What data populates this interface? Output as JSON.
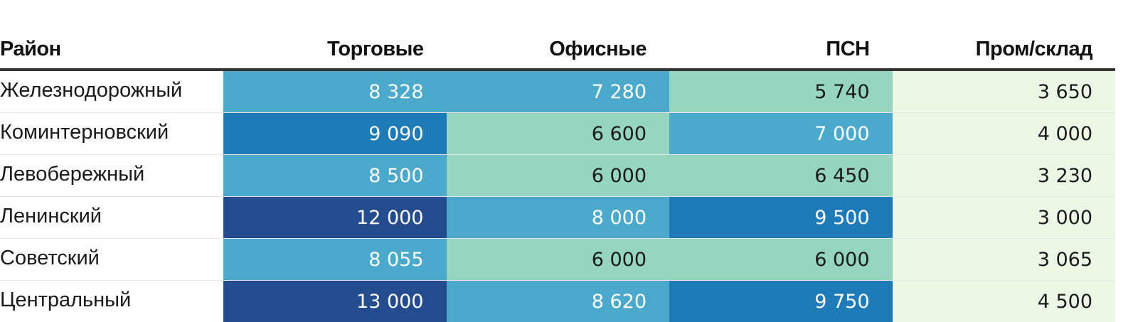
{
  "chart_data": {
    "type": "table",
    "columns": [
      "Район",
      "Торговые",
      "Офисные",
      "ПСН",
      "Пром/склад"
    ],
    "rows": [
      {
        "name": "Железнодорожный",
        "values": [
          "8 328",
          "7 280",
          "5 740",
          "3 650"
        ]
      },
      {
        "name": "Коминтерновский",
        "values": [
          "9 090",
          "6 600",
          "7 000",
          "4 000"
        ]
      },
      {
        "name": "Левобережный",
        "values": [
          "8 500",
          "6 000",
          "6 450",
          "3 230"
        ]
      },
      {
        "name": "Ленинский",
        "values": [
          "12 000",
          "8 000",
          "9 500",
          "3 000"
        ]
      },
      {
        "name": "Советский",
        "values": [
          "8 055",
          "6 000",
          "6 000",
          "3 065"
        ]
      },
      {
        "name": "Центральный",
        "values": [
          "13 000",
          "8 620",
          "9 750",
          "4 500"
        ]
      }
    ],
    "color_scale": [
      {
        "max": 4999,
        "bg": "#edf7e5",
        "text": "#1a1a1a"
      },
      {
        "max": 6999,
        "bg": "#96d5c0",
        "text": "#1a1a1a"
      },
      {
        "max": 8999,
        "bg": "#4ba9cb",
        "text": "#ffffff"
      },
      {
        "max": 9999,
        "bg": "#1f7ab8",
        "text": "#ffffff"
      },
      {
        "max": 99999,
        "bg": "#244b8e",
        "text": "#ffffff"
      }
    ]
  }
}
